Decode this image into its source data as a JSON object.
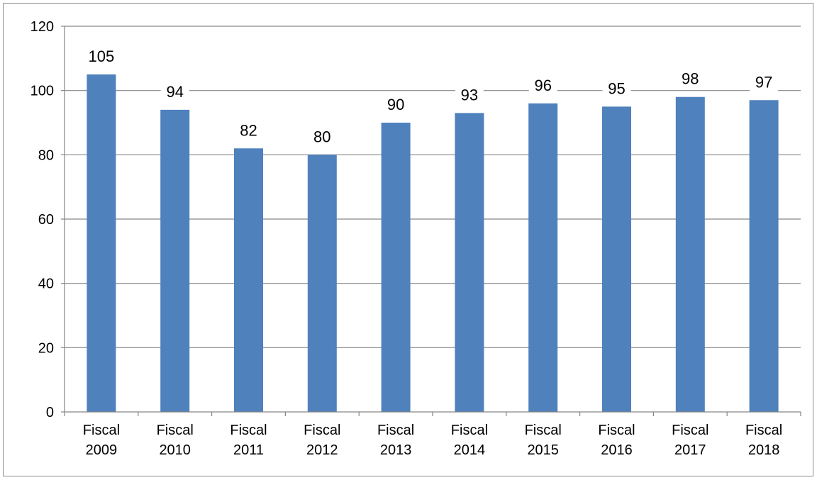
{
  "chart_data": {
    "type": "bar",
    "categories": [
      [
        "Fiscal",
        "2009"
      ],
      [
        "Fiscal",
        "2010"
      ],
      [
        "Fiscal",
        "2011"
      ],
      [
        "Fiscal",
        "2012"
      ],
      [
        "Fiscal",
        "2013"
      ],
      [
        "Fiscal",
        "2014"
      ],
      [
        "Fiscal",
        "2015"
      ],
      [
        "Fiscal",
        "2016"
      ],
      [
        "Fiscal",
        "2017"
      ],
      [
        "Fiscal",
        "2018"
      ]
    ],
    "values": [
      105,
      94,
      82,
      80,
      90,
      93,
      96,
      95,
      98,
      97
    ],
    "data_labels": [
      "105",
      "94",
      "82",
      "80",
      "90",
      "93",
      "96",
      "95",
      "98",
      "97"
    ],
    "y_ticks": [
      "0",
      "20",
      "40",
      "60",
      "80",
      "100",
      "120"
    ],
    "ylim": [
      0,
      120
    ],
    "grid": true,
    "legend": "none",
    "bar_color": "#4f81bd",
    "grid_color": "#868686"
  }
}
